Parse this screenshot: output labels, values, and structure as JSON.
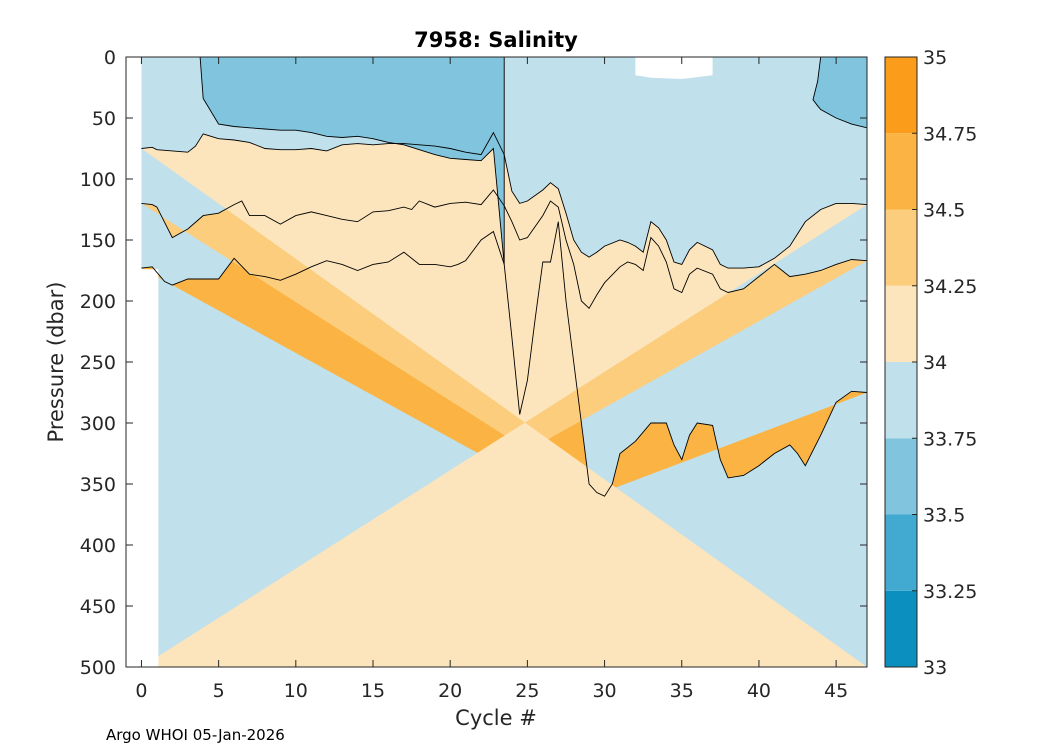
{
  "chart_data": {
    "type": "contour",
    "title": "7958:  Salinity",
    "xlabel": "Cycle #",
    "ylabel": "Pressure (dbar)",
    "credit": "Argo WHOI 05-Jan-2026",
    "xlim": [
      -1,
      47
    ],
    "ylim": [
      500,
      0
    ],
    "y_reversed": true,
    "x_ticks": [
      0,
      5,
      10,
      15,
      20,
      25,
      30,
      35,
      40,
      45
    ],
    "y_ticks": [
      0,
      50,
      100,
      150,
      200,
      250,
      300,
      350,
      400,
      450,
      500
    ],
    "colorbar": {
      "range": [
        33,
        35
      ],
      "ticks": [
        "33",
        "33.25",
        "33.5",
        "33.75",
        "34",
        "34.25",
        "34.5",
        "34.75",
        "35"
      ],
      "bands": [
        {
          "min": 33,
          "max": 33.25,
          "color": "#0a8fbf"
        },
        {
          "min": 33.25,
          "max": 33.5,
          "color": "#42a9d0"
        },
        {
          "min": 33.5,
          "max": 33.75,
          "color": "#80c4de"
        },
        {
          "min": 33.75,
          "max": 34,
          "color": "#c0e0ec"
        },
        {
          "min": 34,
          "max": 34.25,
          "color": "#fce5bc"
        },
        {
          "min": 34.25,
          "max": 34.5,
          "color": "#fbcd7d"
        },
        {
          "min": 34.5,
          "max": 34.75,
          "color": "#fbb443"
        },
        {
          "min": 34.75,
          "max": 35,
          "color": "#fb9d1a"
        }
      ]
    },
    "data_x_range": [
      0,
      47
    ],
    "background_band": "#c0e0ec",
    "regions": [
      {
        "name": "band-34.50-34.75",
        "color": "#fbb443",
        "upper": [
          [
            0,
            173
          ],
          [
            0.7,
            172
          ],
          [
            1.5,
            184
          ],
          [
            2,
            187
          ],
          [
            3,
            182
          ],
          [
            5,
            182
          ],
          [
            6,
            165
          ],
          [
            7,
            178
          ],
          [
            8,
            180
          ],
          [
            9,
            183
          ],
          [
            10,
            178
          ],
          [
            11,
            172
          ],
          [
            12,
            167
          ],
          [
            13,
            170
          ],
          [
            14,
            175
          ],
          [
            15,
            170
          ],
          [
            16,
            168
          ],
          [
            17,
            160
          ],
          [
            18,
            170
          ],
          [
            19,
            170
          ],
          [
            20,
            172
          ],
          [
            20.5,
            170
          ],
          [
            21,
            167
          ],
          [
            22,
            150
          ],
          [
            22.8,
            143
          ],
          [
            23.5,
            170
          ],
          [
            24,
            230
          ],
          [
            24.5,
            293
          ],
          [
            25,
            265
          ],
          [
            25.5,
            215
          ],
          [
            26,
            168
          ],
          [
            26.5,
            168
          ],
          [
            27,
            135
          ],
          [
            27.5,
            200
          ],
          [
            28,
            250
          ],
          [
            28.5,
            300
          ],
          [
            29,
            350
          ],
          [
            29.5,
            357
          ],
          [
            30,
            360
          ],
          [
            30.5,
            350
          ],
          [
            31,
            325
          ],
          [
            32,
            315
          ],
          [
            33,
            300
          ],
          [
            34,
            300
          ],
          [
            34.5,
            318
          ],
          [
            35,
            330
          ],
          [
            35.5,
            310
          ],
          [
            36,
            300
          ],
          [
            37,
            302
          ],
          [
            37.5,
            330
          ],
          [
            38,
            345
          ],
          [
            39,
            343
          ],
          [
            40,
            335
          ],
          [
            41,
            325
          ],
          [
            42,
            318
          ],
          [
            42.5,
            325
          ],
          [
            43,
            335
          ],
          [
            44,
            310
          ],
          [
            45,
            283
          ],
          [
            46,
            274
          ],
          [
            47,
            275
          ]
        ],
        "lower": [
          [
            0,
            500
          ],
          [
            47,
            500
          ]
        ]
      },
      {
        "name": "band-34.25-34.50",
        "color": "#fbcd7d",
        "upper": [
          [
            0,
            120
          ],
          [
            0.7,
            121
          ],
          [
            1,
            123
          ],
          [
            2,
            148
          ],
          [
            3,
            141
          ],
          [
            4,
            130
          ],
          [
            5,
            128
          ],
          [
            6,
            121
          ],
          [
            6.5,
            118
          ],
          [
            7,
            130
          ],
          [
            8,
            130
          ],
          [
            9,
            137
          ],
          [
            10,
            130
          ],
          [
            11,
            127
          ],
          [
            12,
            130
          ],
          [
            13,
            133
          ],
          [
            14,
            135
          ],
          [
            15,
            127
          ],
          [
            16,
            126
          ],
          [
            17,
            123
          ],
          [
            17.5,
            125
          ],
          [
            18,
            118
          ],
          [
            19,
            123
          ],
          [
            20,
            120
          ],
          [
            21,
            119
          ],
          [
            22,
            121
          ],
          [
            22.8,
            109
          ],
          [
            23.5,
            122
          ],
          [
            24,
            135
          ],
          [
            24.5,
            150
          ],
          [
            25,
            148
          ],
          [
            26,
            130
          ],
          [
            26.5,
            118
          ],
          [
            27,
            123
          ],
          [
            27.5,
            150
          ],
          [
            28,
            170
          ],
          [
            28.5,
            200
          ],
          [
            29,
            206
          ],
          [
            29.5,
            195
          ],
          [
            30,
            185
          ],
          [
            31,
            172
          ],
          [
            31.5,
            168
          ],
          [
            32,
            170
          ],
          [
            32.5,
            175
          ],
          [
            33,
            148
          ],
          [
            33.5,
            155
          ],
          [
            34,
            168
          ],
          [
            34.5,
            190
          ],
          [
            35,
            193
          ],
          [
            35.5,
            178
          ],
          [
            36,
            173
          ],
          [
            37,
            178
          ],
          [
            37.5,
            190
          ],
          [
            38,
            193
          ],
          [
            39,
            190
          ],
          [
            40,
            180
          ],
          [
            41,
            170
          ],
          [
            41.5,
            175
          ],
          [
            42,
            180
          ],
          [
            43,
            178
          ],
          [
            44,
            175
          ],
          [
            45,
            170
          ],
          [
            46,
            166
          ],
          [
            47,
            167
          ]
        ],
        "lower": [
          [
            0,
            500
          ],
          [
            47,
            500
          ]
        ]
      },
      {
        "name": "band-34.00-34.25",
        "color": "#fce5bc",
        "upper": [
          [
            0,
            75
          ],
          [
            0.7,
            74
          ],
          [
            1,
            76
          ],
          [
            2,
            77
          ],
          [
            3,
            78
          ],
          [
            3.5,
            73
          ],
          [
            4,
            63
          ],
          [
            5,
            67
          ],
          [
            6,
            68
          ],
          [
            7,
            70
          ],
          [
            8,
            75
          ],
          [
            9,
            76
          ],
          [
            10,
            76
          ],
          [
            11,
            75
          ],
          [
            12,
            77
          ],
          [
            13,
            72
          ],
          [
            14,
            71
          ],
          [
            15,
            72
          ],
          [
            16,
            71
          ],
          [
            17,
            71
          ],
          [
            18,
            72
          ],
          [
            19,
            73
          ],
          [
            20,
            75
          ],
          [
            21,
            78
          ],
          [
            22,
            80
          ],
          [
            22.8,
            62
          ],
          [
            23.5,
            80
          ],
          [
            24,
            110
          ],
          [
            24.5,
            120
          ],
          [
            25,
            118
          ],
          [
            26,
            109
          ],
          [
            26.5,
            103
          ],
          [
            27,
            108
          ],
          [
            27.5,
            128
          ],
          [
            28,
            150
          ],
          [
            28.5,
            160
          ],
          [
            29,
            164
          ],
          [
            29.5,
            160
          ],
          [
            30,
            155
          ],
          [
            31,
            150
          ],
          [
            31.5,
            152
          ],
          [
            32,
            155
          ],
          [
            32.5,
            160
          ],
          [
            33,
            135
          ],
          [
            33.5,
            140
          ],
          [
            34,
            150
          ],
          [
            34.5,
            168
          ],
          [
            35,
            170
          ],
          [
            35.5,
            158
          ],
          [
            36,
            152
          ],
          [
            37,
            158
          ],
          [
            37.5,
            170
          ],
          [
            38,
            173
          ],
          [
            39,
            173
          ],
          [
            40,
            172
          ],
          [
            41,
            165
          ],
          [
            41.5,
            160
          ],
          [
            42,
            155
          ],
          [
            43,
            135
          ],
          [
            44,
            125
          ],
          [
            45,
            120
          ],
          [
            46,
            120
          ],
          [
            47,
            121
          ]
        ],
        "lower": [
          [
            0,
            500
          ],
          [
            47,
            500
          ]
        ]
      },
      {
        "name": "band-33.50-33.75",
        "color": "#80c4de",
        "upper": [
          [
            3.8,
            0
          ],
          [
            23.5,
            0
          ]
        ],
        "lower": [
          [
            23.5,
            0
          ],
          [
            23.5,
            170
          ],
          [
            22.8,
            75
          ],
          [
            22,
            85
          ],
          [
            21,
            84
          ],
          [
            20,
            83
          ],
          [
            19,
            80
          ],
          [
            18,
            76
          ],
          [
            17,
            72
          ],
          [
            16,
            70
          ],
          [
            15,
            67
          ],
          [
            14,
            65
          ],
          [
            13,
            66
          ],
          [
            12,
            65
          ],
          [
            11,
            62
          ],
          [
            10,
            60
          ],
          [
            9,
            60
          ],
          [
            8,
            59
          ],
          [
            7,
            58
          ],
          [
            6,
            57
          ],
          [
            5,
            55
          ],
          [
            4,
            34
          ],
          [
            3.8,
            0
          ]
        ]
      },
      {
        "name": "band-33.50-33.75-right",
        "color": "#80c4de",
        "upper": [
          [
            44,
            0
          ],
          [
            47,
            0
          ]
        ],
        "lower": [
          [
            47,
            0
          ],
          [
            47,
            58
          ],
          [
            46,
            55
          ],
          [
            45,
            50
          ],
          [
            44,
            43
          ],
          [
            43.8,
            40
          ],
          [
            43.5,
            35
          ],
          [
            43.8,
            20
          ],
          [
            44,
            0
          ]
        ]
      },
      {
        "name": "missing-top-gap",
        "color": "#ffffff",
        "upper": [
          [
            32,
            0
          ],
          [
            37,
            0
          ]
        ],
        "lower": [
          [
            37,
            0
          ],
          [
            37,
            15
          ],
          [
            35,
            18
          ],
          [
            33,
            17
          ],
          [
            32,
            15
          ],
          [
            32,
            0
          ]
        ]
      },
      {
        "name": "missing-left-gap",
        "color": "#ffffff",
        "upper": [
          [
            -0.1,
            174
          ],
          [
            1.1,
            174
          ]
        ],
        "lower": [
          [
            1.1,
            174
          ],
          [
            1.1,
            502
          ],
          [
            -0.1,
            502
          ],
          [
            -0.1,
            174
          ]
        ]
      }
    ]
  }
}
